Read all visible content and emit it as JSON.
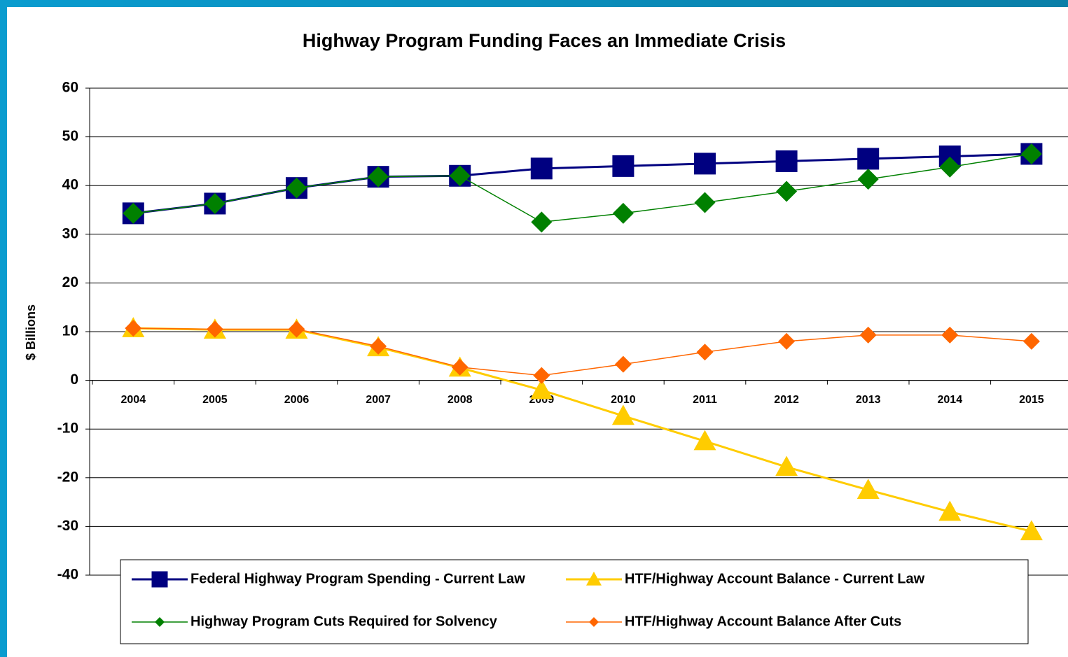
{
  "chart_data": {
    "type": "line",
    "title": "Highway Program Funding Faces an Immediate Crisis",
    "y_label": "$ Billions",
    "categories": [
      "2004",
      "2005",
      "2006",
      "2007",
      "2008",
      "2009",
      "2010",
      "2011",
      "2012",
      "2013",
      "2014",
      "2015"
    ],
    "ylim": [
      -40,
      60
    ],
    "yticks": [
      -40,
      -30,
      -20,
      -10,
      0,
      10,
      20,
      30,
      40,
      50,
      60
    ],
    "grid": true,
    "legend": "bottom",
    "series": [
      {
        "name": "Federal Highway Program Spending - Current Law",
        "color": "#000080",
        "marker": "square",
        "values": [
          34.3,
          36.3,
          39.5,
          41.8,
          42.0,
          43.5,
          44.0,
          44.5,
          45.0,
          45.5,
          46.0,
          46.5
        ]
      },
      {
        "name": "HTF/Highway Account Balance - Current Law",
        "color": "#ffcc00",
        "marker": "triangle",
        "values": [
          10.7,
          10.4,
          10.4,
          6.8,
          2.6,
          -2.0,
          -7.3,
          -12.5,
          -17.8,
          -22.5,
          -27.0,
          -31.0
        ]
      },
      {
        "name": "Highway Program Cuts Required for Solvency",
        "color": "#008000",
        "marker": "diamond",
        "values": [
          34.3,
          36.3,
          39.5,
          41.8,
          42.0,
          32.5,
          34.3,
          36.5,
          38.8,
          41.3,
          43.8,
          46.5
        ]
      },
      {
        "name": "HTF/Highway Account Balance After Cuts",
        "color": "#ff6600",
        "marker": "diamond",
        "values": [
          10.7,
          10.5,
          10.5,
          7.0,
          2.7,
          1.0,
          3.3,
          5.8,
          8.0,
          9.3,
          9.3,
          8.0
        ]
      }
    ]
  }
}
